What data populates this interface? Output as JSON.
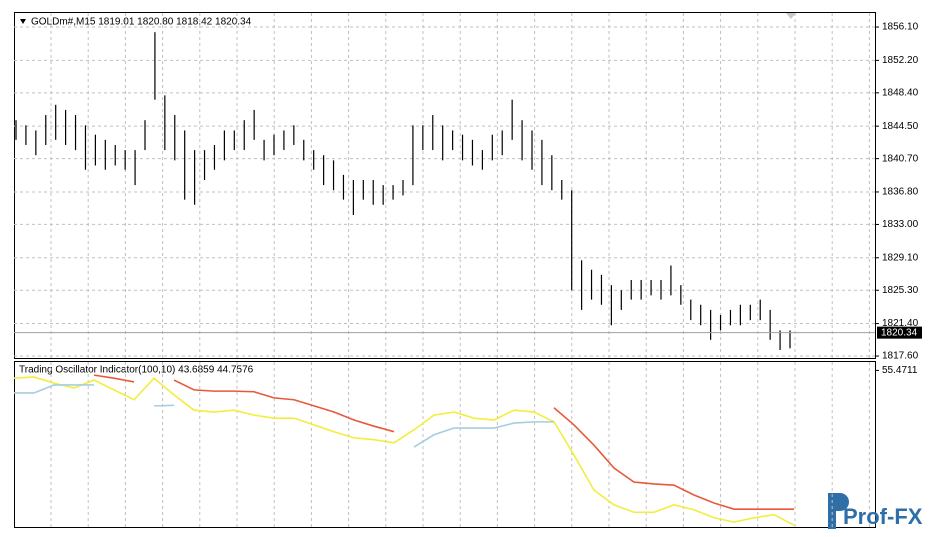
{
  "chart_data": [
    {
      "type": "ohlc",
      "title": "GOLDm#,M15  1819.01 1820.80 1818.42 1820.34",
      "color": "#000000",
      "high": [
        1845.2,
        1844.6,
        1844.0,
        1845.8,
        1847.0,
        1846.4,
        1845.8,
        1844.6,
        1843.5,
        1842.9,
        1842.3,
        1841.7,
        1841.7,
        1845.2,
        1855.5,
        1848.1,
        1845.8,
        1844.0,
        1841.7,
        1841.7,
        1842.3,
        1844.0,
        1844.0,
        1845.2,
        1846.4,
        1842.9,
        1843.5,
        1844.0,
        1844.6,
        1842.9,
        1841.7,
        1841.1,
        1840.5,
        1838.8,
        1838.2,
        1838.2,
        1838.2,
        1837.6,
        1837.6,
        1838.2,
        1844.6,
        1844.6,
        1845.8,
        1844.6,
        1844.0,
        1843.5,
        1842.9,
        1841.7,
        1843.5,
        1844.0,
        1847.6,
        1845.2,
        1844.0,
        1842.9,
        1841.1,
        1838.2,
        1837.0,
        1828.8,
        1827.7,
        1827.1,
        1825.9,
        1825.3,
        1826.5,
        1826.5,
        1826.5,
        1826.5,
        1828.2,
        1825.9,
        1824.2,
        1823.6,
        1823.0,
        1822.4,
        1823.0,
        1823.6,
        1823.6,
        1824.2,
        1823.0,
        1820.6,
        1820.6
      ],
      "low": [
        1842.9,
        1842.3,
        1841.1,
        1842.3,
        1842.9,
        1842.3,
        1841.7,
        1839.4,
        1839.9,
        1839.4,
        1839.9,
        1839.4,
        1837.6,
        1841.7,
        1847.6,
        1841.7,
        1840.5,
        1835.9,
        1835.3,
        1838.2,
        1839.4,
        1840.5,
        1841.7,
        1841.7,
        1842.9,
        1840.5,
        1841.1,
        1841.7,
        1842.3,
        1840.5,
        1839.4,
        1837.6,
        1837.0,
        1835.9,
        1834.1,
        1835.9,
        1835.3,
        1835.3,
        1835.9,
        1836.4,
        1837.6,
        1841.7,
        1841.7,
        1840.5,
        1841.7,
        1840.5,
        1839.9,
        1839.4,
        1840.5,
        1841.1,
        1842.9,
        1840.5,
        1839.4,
        1837.6,
        1837.0,
        1835.9,
        1825.3,
        1823.0,
        1824.2,
        1823.6,
        1821.2,
        1823.0,
        1824.2,
        1824.2,
        1824.7,
        1824.2,
        1824.7,
        1823.6,
        1821.8,
        1821.2,
        1819.5,
        1820.6,
        1821.2,
        1821.2,
        1821.8,
        1821.8,
        1819.5,
        1818.3,
        1818.5
      ],
      "last_price": 1820.34,
      "ylim": [
        1817.37,
        1857.86
      ],
      "yticks": [
        {
          "value": 1856.1,
          "label": "1856.10"
        },
        {
          "value": 1852.2,
          "label": "1852.20"
        },
        {
          "value": 1848.4,
          "label": "1848.40"
        },
        {
          "value": 1844.5,
          "label": "1844.50"
        },
        {
          "value": 1840.7,
          "label": "1840.70"
        },
        {
          "value": 1836.8,
          "label": "1836.80"
        },
        {
          "value": 1833.0,
          "label": "1833.00"
        },
        {
          "value": 1829.1,
          "label": "1829.10"
        },
        {
          "value": 1825.3,
          "label": "1825.30"
        },
        {
          "value": 1821.4,
          "label": "1821.40"
        },
        {
          "value": 1817.6,
          "label": "1817.60"
        }
      ],
      "grid": true
    },
    {
      "type": "line",
      "title": "Trading Oscillator Indicator(100,10) 43.6859 44.7576",
      "ylim": [
        30,
        57
      ],
      "yticks": [
        55.4711
      ],
      "series": [
        {
          "color": "#f2ee3c",
          "values": [
            54.2,
            54.4,
            53.4,
            52.6,
            53.9,
            52.3,
            50.7,
            54.2,
            51.5,
            49.0,
            48.7,
            49.0,
            48.2,
            47.7,
            47.7,
            46.6,
            45.5,
            44.5,
            44.2,
            43.7,
            45.8,
            48.2,
            48.7,
            47.7,
            47.4,
            49.0,
            48.7,
            47.1,
            41.7,
            36.0,
            33.6,
            32.4,
            32.4,
            33.6,
            32.8,
            31.5,
            30.8,
            31.5,
            32.0,
            30.3
          ]
        },
        {
          "color": "#a6cde0",
          "values": [
            51.8,
            51.8,
            53.1,
            53.1,
            53.1,
            null,
            null,
            49.7,
            49.8,
            null,
            null,
            null,
            null,
            null,
            null,
            null,
            null,
            null,
            null,
            null,
            43.0,
            45.0,
            46.1,
            46.1,
            46.1,
            46.9,
            47.1,
            47.1,
            null,
            null,
            null,
            null,
            null,
            null,
            null,
            null,
            null,
            null,
            null,
            null
          ]
        },
        {
          "color": "#e8593b",
          "values": [
            null,
            null,
            null,
            null,
            54.7,
            54.2,
            53.6,
            null,
            53.9,
            52.3,
            52.1,
            52.1,
            52.0,
            51.0,
            50.7,
            49.7,
            48.7,
            47.4,
            46.4,
            45.5,
            null,
            null,
            null,
            null,
            null,
            null,
            null,
            49.4,
            46.6,
            43.3,
            39.6,
            37.3,
            37.0,
            36.8,
            35.2,
            33.9,
            32.9,
            32.9,
            32.9,
            32.9
          ]
        }
      ]
    }
  ],
  "watermark": "Prof-FX"
}
